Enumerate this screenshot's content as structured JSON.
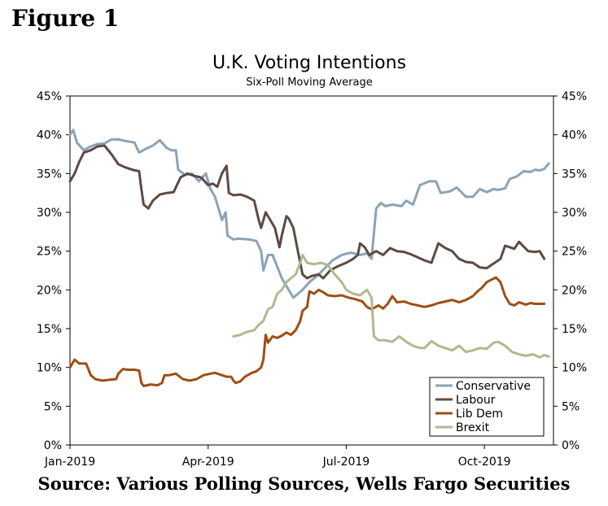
{
  "figure_label": "Figure 1",
  "source_text": "Source: Various Polling Sources, Wells Fargo Securities",
  "chart_data": {
    "type": "line",
    "title": "U.K. Voting Intentions",
    "subtitle": "Six-Poll Moving Average",
    "xlabel": "",
    "ylabel": "",
    "x_range": [
      0,
      10.5
    ],
    "x_ticks": [
      {
        "label": "Jan-2019",
        "value": 0
      },
      {
        "label": "Apr-2019",
        "value": 3
      },
      {
        "label": "Jul-2019",
        "value": 6
      },
      {
        "label": "Oct-2019",
        "value": 9
      }
    ],
    "ylim": [
      0,
      45
    ],
    "y_ticks": [
      0,
      5,
      10,
      15,
      20,
      25,
      30,
      35,
      40,
      45
    ],
    "y_tick_labels": [
      "0%",
      "5%",
      "10%",
      "15%",
      "20%",
      "25%",
      "30%",
      "35%",
      "40%",
      "45%"
    ],
    "grid": false,
    "legend_position": "bottom-right",
    "series": [
      {
        "name": "Conservative",
        "color": "#8aa3b6",
        "points": [
          [
            0,
            40
          ],
          [
            0.07,
            40.6
          ],
          [
            0.15,
            39
          ],
          [
            0.3,
            38
          ],
          [
            0.45,
            38.5
          ],
          [
            0.6,
            38.8
          ],
          [
            0.75,
            38.9
          ],
          [
            0.9,
            39.4
          ],
          [
            1.05,
            39.4
          ],
          [
            1.2,
            39.2
          ],
          [
            1.4,
            39
          ],
          [
            1.5,
            37.7
          ],
          [
            1.65,
            38.2
          ],
          [
            1.8,
            38.6
          ],
          [
            1.95,
            39.3
          ],
          [
            2.1,
            38.3
          ],
          [
            2.2,
            38
          ],
          [
            2.3,
            38
          ],
          [
            2.35,
            35.5
          ],
          [
            2.5,
            34.8
          ],
          [
            2.65,
            35
          ],
          [
            2.8,
            34
          ],
          [
            2.95,
            35
          ],
          [
            3.05,
            33
          ],
          [
            3.15,
            32
          ],
          [
            3.3,
            29
          ],
          [
            3.38,
            30
          ],
          [
            3.42,
            27
          ],
          [
            3.55,
            26.5
          ],
          [
            3.65,
            26.6
          ],
          [
            3.9,
            26.5
          ],
          [
            4.05,
            26.3
          ],
          [
            4.15,
            25
          ],
          [
            4.2,
            22.5
          ],
          [
            4.3,
            24.5
          ],
          [
            4.4,
            24.5
          ],
          [
            4.5,
            23
          ],
          [
            4.6,
            21.5
          ],
          [
            4.7,
            20.5
          ],
          [
            4.85,
            19
          ],
          [
            4.95,
            19.5
          ],
          [
            5.05,
            20
          ],
          [
            5.2,
            21
          ],
          [
            5.4,
            22
          ],
          [
            5.7,
            23.8
          ],
          [
            5.9,
            24.5
          ],
          [
            6.1,
            24.8
          ],
          [
            6.3,
            24.5
          ],
          [
            6.45,
            24.7
          ],
          [
            6.55,
            24
          ],
          [
            6.65,
            30.5
          ],
          [
            6.75,
            31.2
          ],
          [
            6.85,
            30.8
          ],
          [
            7,
            31
          ],
          [
            7.2,
            30.8
          ],
          [
            7.3,
            31.5
          ],
          [
            7.45,
            31
          ],
          [
            7.6,
            33.5
          ],
          [
            7.8,
            34
          ],
          [
            7.95,
            34
          ],
          [
            8.05,
            32.5
          ],
          [
            8.25,
            32.7
          ],
          [
            8.4,
            33.2
          ],
          [
            8.6,
            32
          ],
          [
            8.75,
            32
          ],
          [
            8.9,
            33
          ],
          [
            9.05,
            32.6
          ],
          [
            9.2,
            33
          ],
          [
            9.3,
            32.9
          ],
          [
            9.45,
            33.1
          ],
          [
            9.55,
            34.3
          ],
          [
            9.7,
            34.6
          ],
          [
            9.85,
            35.3
          ],
          [
            10,
            35.2
          ],
          [
            10.1,
            35.5
          ],
          [
            10.2,
            35.4
          ],
          [
            10.3,
            35.6
          ],
          [
            10.4,
            36.3
          ]
        ]
      },
      {
        "name": "Labour",
        "color": "#5e4a42",
        "points": [
          [
            0,
            34
          ],
          [
            0.1,
            35
          ],
          [
            0.2,
            36.5
          ],
          [
            0.3,
            37.7
          ],
          [
            0.45,
            38
          ],
          [
            0.6,
            38.5
          ],
          [
            0.75,
            38.6
          ],
          [
            0.9,
            37.5
          ],
          [
            1.05,
            36.2
          ],
          [
            1.2,
            35.8
          ],
          [
            1.35,
            35.5
          ],
          [
            1.5,
            35.3
          ],
          [
            1.55,
            33
          ],
          [
            1.6,
            31
          ],
          [
            1.7,
            30.5
          ],
          [
            1.8,
            31.5
          ],
          [
            1.95,
            32.3
          ],
          [
            2.1,
            32.5
          ],
          [
            2.25,
            32.6
          ],
          [
            2.4,
            34.5
          ],
          [
            2.55,
            35
          ],
          [
            2.7,
            34.7
          ],
          [
            2.85,
            34.5
          ],
          [
            3,
            33.5
          ],
          [
            3.1,
            33.7
          ],
          [
            3.2,
            33.3
          ],
          [
            3.3,
            35
          ],
          [
            3.4,
            36
          ],
          [
            3.45,
            32.5
          ],
          [
            3.55,
            32.2
          ],
          [
            3.7,
            32.3
          ],
          [
            3.85,
            32
          ],
          [
            4,
            31.5
          ],
          [
            4.1,
            29
          ],
          [
            4.15,
            28
          ],
          [
            4.25,
            30
          ],
          [
            4.35,
            29
          ],
          [
            4.45,
            28
          ],
          [
            4.55,
            25.5
          ],
          [
            4.6,
            27
          ],
          [
            4.7,
            29.5
          ],
          [
            4.75,
            29.2
          ],
          [
            4.85,
            28
          ],
          [
            4.95,
            25
          ],
          [
            5.05,
            22
          ],
          [
            5.15,
            21.5
          ],
          [
            5.25,
            21.8
          ],
          [
            5.4,
            22
          ],
          [
            5.5,
            21.5
          ],
          [
            5.65,
            22.5
          ],
          [
            5.8,
            23
          ],
          [
            6,
            23.5
          ],
          [
            6.15,
            24
          ],
          [
            6.25,
            24.5
          ],
          [
            6.3,
            26
          ],
          [
            6.4,
            25.5
          ],
          [
            6.5,
            24.5
          ],
          [
            6.65,
            25
          ],
          [
            6.8,
            24.5
          ],
          [
            6.95,
            25.4
          ],
          [
            7.1,
            25
          ],
          [
            7.25,
            24.9
          ],
          [
            7.4,
            24.6
          ],
          [
            7.55,
            24.2
          ],
          [
            7.7,
            23.8
          ],
          [
            7.85,
            23.5
          ],
          [
            8,
            26
          ],
          [
            8.15,
            25.4
          ],
          [
            8.3,
            25
          ],
          [
            8.45,
            24
          ],
          [
            8.6,
            23.6
          ],
          [
            8.75,
            23.5
          ],
          [
            8.9,
            22.9
          ],
          [
            9.05,
            22.8
          ],
          [
            9.2,
            23.4
          ],
          [
            9.35,
            24
          ],
          [
            9.45,
            25.7
          ],
          [
            9.55,
            25.5
          ],
          [
            9.65,
            25.3
          ],
          [
            9.75,
            26.2
          ],
          [
            9.85,
            25.6
          ],
          [
            9.95,
            25
          ],
          [
            10.1,
            24.9
          ],
          [
            10.2,
            25
          ],
          [
            10.3,
            24
          ]
        ]
      },
      {
        "name": "Lib Dem",
        "color": "#9e4e15",
        "points": [
          [
            0,
            10
          ],
          [
            0.1,
            11
          ],
          [
            0.2,
            10.5
          ],
          [
            0.35,
            10.5
          ],
          [
            0.45,
            9
          ],
          [
            0.55,
            8.5
          ],
          [
            0.7,
            8.3
          ],
          [
            0.85,
            8.4
          ],
          [
            1,
            8.5
          ],
          [
            1.05,
            9.2
          ],
          [
            1.15,
            9.8
          ],
          [
            1.25,
            9.7
          ],
          [
            1.4,
            9.7
          ],
          [
            1.5,
            9.6
          ],
          [
            1.55,
            8
          ],
          [
            1.6,
            7.6
          ],
          [
            1.75,
            7.8
          ],
          [
            1.9,
            7.7
          ],
          [
            2,
            8
          ],
          [
            2.05,
            9
          ],
          [
            2.15,
            9
          ],
          [
            2.3,
            9.2
          ],
          [
            2.45,
            8.5
          ],
          [
            2.6,
            8.3
          ],
          [
            2.75,
            8.5
          ],
          [
            2.9,
            9
          ],
          [
            3.05,
            9.2
          ],
          [
            3.15,
            9.3
          ],
          [
            3.3,
            9
          ],
          [
            3.4,
            8.8
          ],
          [
            3.5,
            8.8
          ],
          [
            3.55,
            8.3
          ],
          [
            3.6,
            8
          ],
          [
            3.7,
            8.2
          ],
          [
            3.8,
            8.8
          ],
          [
            3.95,
            9.3
          ],
          [
            4.05,
            9.5
          ],
          [
            4.15,
            10
          ],
          [
            4.2,
            11
          ],
          [
            4.25,
            14.2
          ],
          [
            4.3,
            13.2
          ],
          [
            4.4,
            14
          ],
          [
            4.5,
            13.8
          ],
          [
            4.6,
            14.1
          ],
          [
            4.7,
            14.5
          ],
          [
            4.8,
            14.2
          ],
          [
            4.9,
            14.8
          ],
          [
            5,
            16
          ],
          [
            5.05,
            17.3
          ],
          [
            5.15,
            17.8
          ],
          [
            5.2,
            19.8
          ],
          [
            5.3,
            19.5
          ],
          [
            5.4,
            20
          ],
          [
            5.5,
            19.7
          ],
          [
            5.6,
            19.3
          ],
          [
            5.75,
            19.2
          ],
          [
            5.9,
            19.3
          ],
          [
            6.05,
            19
          ],
          [
            6.2,
            18.8
          ],
          [
            6.35,
            18.5
          ],
          [
            6.45,
            17.8
          ],
          [
            6.55,
            17.5
          ],
          [
            6.7,
            18
          ],
          [
            6.8,
            17.6
          ],
          [
            6.9,
            18.2
          ],
          [
            7,
            19.2
          ],
          [
            7.1,
            18.4
          ],
          [
            7.25,
            18.5
          ],
          [
            7.4,
            18.2
          ],
          [
            7.55,
            18
          ],
          [
            7.7,
            17.8
          ],
          [
            7.85,
            18
          ],
          [
            8,
            18.3
          ],
          [
            8.15,
            18.5
          ],
          [
            8.3,
            18.7
          ],
          [
            8.45,
            18.4
          ],
          [
            8.6,
            18.7
          ],
          [
            8.75,
            19.2
          ],
          [
            8.85,
            19.8
          ],
          [
            8.95,
            20.3
          ],
          [
            9.05,
            21
          ],
          [
            9.15,
            21.3
          ],
          [
            9.25,
            21.6
          ],
          [
            9.35,
            21
          ],
          [
            9.45,
            19.2
          ],
          [
            9.55,
            18.2
          ],
          [
            9.65,
            18
          ],
          [
            9.75,
            18.4
          ],
          [
            9.9,
            18.1
          ],
          [
            10,
            18.3
          ],
          [
            10.1,
            18.2
          ],
          [
            10.3,
            18.2
          ]
        ]
      },
      {
        "name": "Brexit",
        "color": "#b0b890",
        "points": [
          [
            3.55,
            14
          ],
          [
            3.7,
            14.2
          ],
          [
            3.85,
            14.6
          ],
          [
            4,
            14.8
          ],
          [
            4.1,
            15.5
          ],
          [
            4.2,
            16
          ],
          [
            4.3,
            17.5
          ],
          [
            4.4,
            17.8
          ],
          [
            4.5,
            19.5
          ],
          [
            4.6,
            20
          ],
          [
            4.7,
            21
          ],
          [
            4.8,
            21.5
          ],
          [
            4.9,
            22
          ],
          [
            5,
            23.5
          ],
          [
            5.05,
            24.5
          ],
          [
            5.15,
            23.5
          ],
          [
            5.3,
            23.3
          ],
          [
            5.45,
            23.5
          ],
          [
            5.6,
            23.2
          ],
          [
            5.75,
            22
          ],
          [
            5.9,
            21
          ],
          [
            6,
            20
          ],
          [
            6.15,
            19.5
          ],
          [
            6.3,
            19.3
          ],
          [
            6.45,
            20
          ],
          [
            6.55,
            19
          ],
          [
            6.6,
            14
          ],
          [
            6.7,
            13.5
          ],
          [
            6.85,
            13.5
          ],
          [
            7,
            13.3
          ],
          [
            7.15,
            14
          ],
          [
            7.3,
            13.3
          ],
          [
            7.45,
            12.8
          ],
          [
            7.6,
            12.5
          ],
          [
            7.7,
            12.5
          ],
          [
            7.85,
            13.4
          ],
          [
            8,
            12.8
          ],
          [
            8.15,
            12.5
          ],
          [
            8.3,
            12.2
          ],
          [
            8.45,
            12.8
          ],
          [
            8.6,
            12
          ],
          [
            8.75,
            12.2
          ],
          [
            8.9,
            12.5
          ],
          [
            9.05,
            12.4
          ],
          [
            9.2,
            13.2
          ],
          [
            9.3,
            13.3
          ],
          [
            9.45,
            12.8
          ],
          [
            9.6,
            12
          ],
          [
            9.75,
            11.7
          ],
          [
            9.9,
            11.5
          ],
          [
            10.05,
            11.7
          ],
          [
            10.2,
            11.3
          ],
          [
            10.3,
            11.6
          ],
          [
            10.4,
            11.4
          ]
        ]
      }
    ]
  }
}
